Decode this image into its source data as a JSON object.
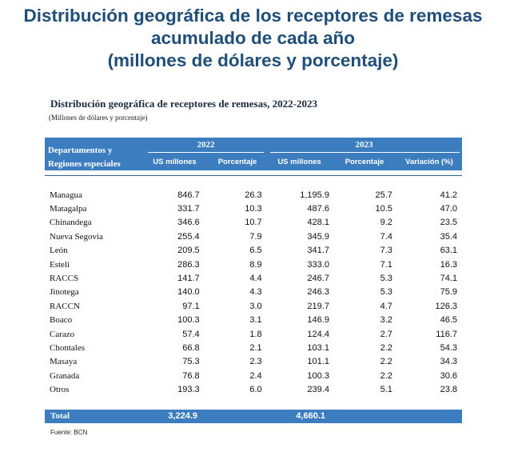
{
  "title": {
    "line1": "Distribución geográfica de los receptores de remesas",
    "line2": "acumulado de cada año",
    "line3": "(millones de dólares y porcentaje)"
  },
  "table": {
    "title": "Distribución geográfica de receptores de remesas, 2022-2023",
    "subtitle": "(Millones de dólares y porcentaje)",
    "header": {
      "label_line1": "Departamentos y",
      "label_line2": "Regiones especiales",
      "year_2022": "2022",
      "year_2023": "2023",
      "col_usd_2022": "US millones",
      "col_pct_2022": "Porcentaje",
      "col_usd_2023": "US millones",
      "col_pct_2023": "Porcentaje",
      "col_var": "Variación (%)"
    },
    "rows": [
      {
        "name": "Managua",
        "usd2022": "846.7",
        "pct2022": "26.3",
        "usd2023": "1,195.9",
        "pct2023": "25.7",
        "var": "41.2"
      },
      {
        "name": "Matagalpa",
        "usd2022": "331.7",
        "pct2022": "10.3",
        "usd2023": "487.6",
        "pct2023": "10.5",
        "var": "47.0"
      },
      {
        "name": "Chinandega",
        "usd2022": "346.6",
        "pct2022": "10.7",
        "usd2023": "428.1",
        "pct2023": "9.2",
        "var": "23.5"
      },
      {
        "name": "Nueva Segovia",
        "usd2022": "255.4",
        "pct2022": "7.9",
        "usd2023": "345.9",
        "pct2023": "7.4",
        "var": "35.4"
      },
      {
        "name": "León",
        "usd2022": "209.5",
        "pct2022": "6.5",
        "usd2023": "341.7",
        "pct2023": "7.3",
        "var": "63.1"
      },
      {
        "name": "Estelí",
        "usd2022": "286.3",
        "pct2022": "8.9",
        "usd2023": "333.0",
        "pct2023": "7.1",
        "var": "16.3"
      },
      {
        "name": "RACCS",
        "usd2022": "141.7",
        "pct2022": "4.4",
        "usd2023": "246.7",
        "pct2023": "5.3",
        "var": "74.1"
      },
      {
        "name": "Jinotega",
        "usd2022": "140.0",
        "pct2022": "4.3",
        "usd2023": "246.3",
        "pct2023": "5.3",
        "var": "75.9"
      },
      {
        "name": "RACCN",
        "usd2022": "97.1",
        "pct2022": "3.0",
        "usd2023": "219.7",
        "pct2023": "4.7",
        "var": "126.3"
      },
      {
        "name": "Boaco",
        "usd2022": "100.3",
        "pct2022": "3.1",
        "usd2023": "146.9",
        "pct2023": "3.2",
        "var": "46.5"
      },
      {
        "name": "Carazo",
        "usd2022": "57.4",
        "pct2022": "1.8",
        "usd2023": "124.4",
        "pct2023": "2.7",
        "var": "116.7"
      },
      {
        "name": "Chontales",
        "usd2022": "66.8",
        "pct2022": "2.1",
        "usd2023": "103.1",
        "pct2023": "2.2",
        "var": "54.3"
      },
      {
        "name": "Masaya",
        "usd2022": "75.3",
        "pct2022": "2.3",
        "usd2023": "101.1",
        "pct2023": "2.2",
        "var": "34.3"
      },
      {
        "name": "Granada",
        "usd2022": "76.8",
        "pct2022": "2.4",
        "usd2023": "100.3",
        "pct2023": "2.2",
        "var": "30.6"
      },
      {
        "name": "Otros",
        "usd2022": "193.3",
        "pct2022": "6.0",
        "usd2023": "239.4",
        "pct2023": "5.1",
        "var": "23.8"
      }
    ],
    "total": {
      "label": "Total",
      "usd2022": "3,224.9",
      "usd2023": "4,660.1"
    }
  },
  "source": "Fuente: BCN",
  "colors": {
    "header_blue": "#3b7dbf",
    "title_blue": "#1f4e79"
  }
}
